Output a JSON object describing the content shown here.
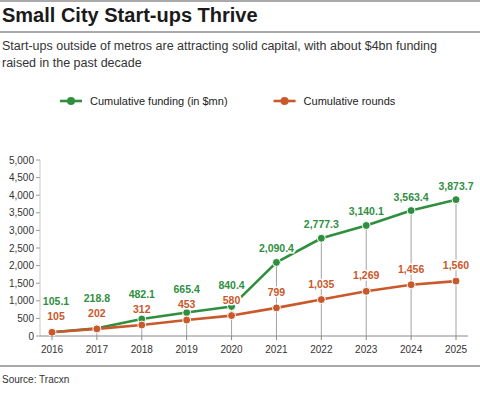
{
  "chart_data": {
    "type": "line",
    "title": "Small City Start-ups Thrive",
    "subtitle": "Start-ups outside of metros are attracting solid capital, with about $4bn funding raised in the past decade",
    "source": "Source: Tracxn",
    "categories": [
      "2016",
      "2017",
      "2018",
      "2019",
      "2020",
      "2021",
      "2022",
      "2023",
      "2024",
      "2025"
    ],
    "series": [
      {
        "name": "Cumulative funding (in $mn)",
        "color": "#2f8f3f",
        "marker": "circle",
        "values": [
          105.1,
          218.8,
          482.1,
          665.4,
          840.4,
          2090.4,
          2777.3,
          3140.1,
          3563.4,
          3873.7
        ],
        "value_labels": [
          "105.1",
          "218.8",
          "482.1",
          "665.4",
          "840.4",
          "2,090.4",
          "2,777.3",
          "3,140.1",
          "3,563.4",
          "3,873.7"
        ]
      },
      {
        "name": "Cumulative rounds",
        "color": "#c9582b",
        "marker": "circle",
        "values": [
          105,
          202,
          312,
          453,
          580,
          799,
          1035,
          1269,
          1456,
          1560
        ],
        "value_labels": [
          "105",
          "202",
          "312",
          "453",
          "580",
          "799",
          "1,035",
          "1,269",
          "1,456",
          "1,560"
        ]
      }
    ],
    "ylim": [
      0,
      5000
    ],
    "yticks": [
      0,
      500,
      {
        "value": 1000,
        "label": "1,000"
      },
      {
        "value": 1500,
        "label": "1,500"
      },
      {
        "value": 2000,
        "label": "2,000"
      },
      {
        "value": 2500,
        "label": "2,500"
      },
      {
        "value": 3000,
        "label": "3,000"
      },
      {
        "value": 3500,
        "label": "3,500"
      },
      {
        "value": 4000,
        "label": "4,000"
      },
      {
        "value": 4500,
        "label": "4,500"
      },
      {
        "value": 5000,
        "label": "5,000"
      }
    ],
    "grid": true,
    "legend": "top-left",
    "data_labels": true
  }
}
